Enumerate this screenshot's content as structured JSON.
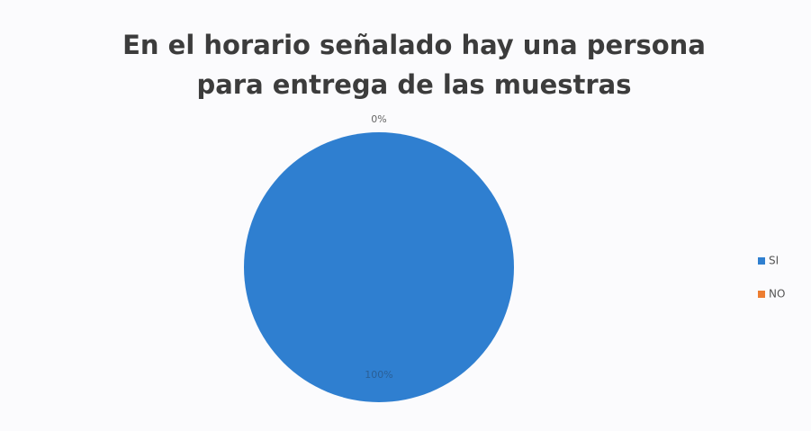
{
  "chart_data": {
    "type": "pie",
    "title": "En el horario señalado hay una persona para entrega de las muestras",
    "categories": [
      "SI",
      "NO"
    ],
    "values": [
      100,
      0
    ],
    "value_labels": [
      "100%",
      "0%"
    ],
    "colors": [
      "#2f7fd0",
      "#ed7d31"
    ],
    "legend": "right"
  }
}
